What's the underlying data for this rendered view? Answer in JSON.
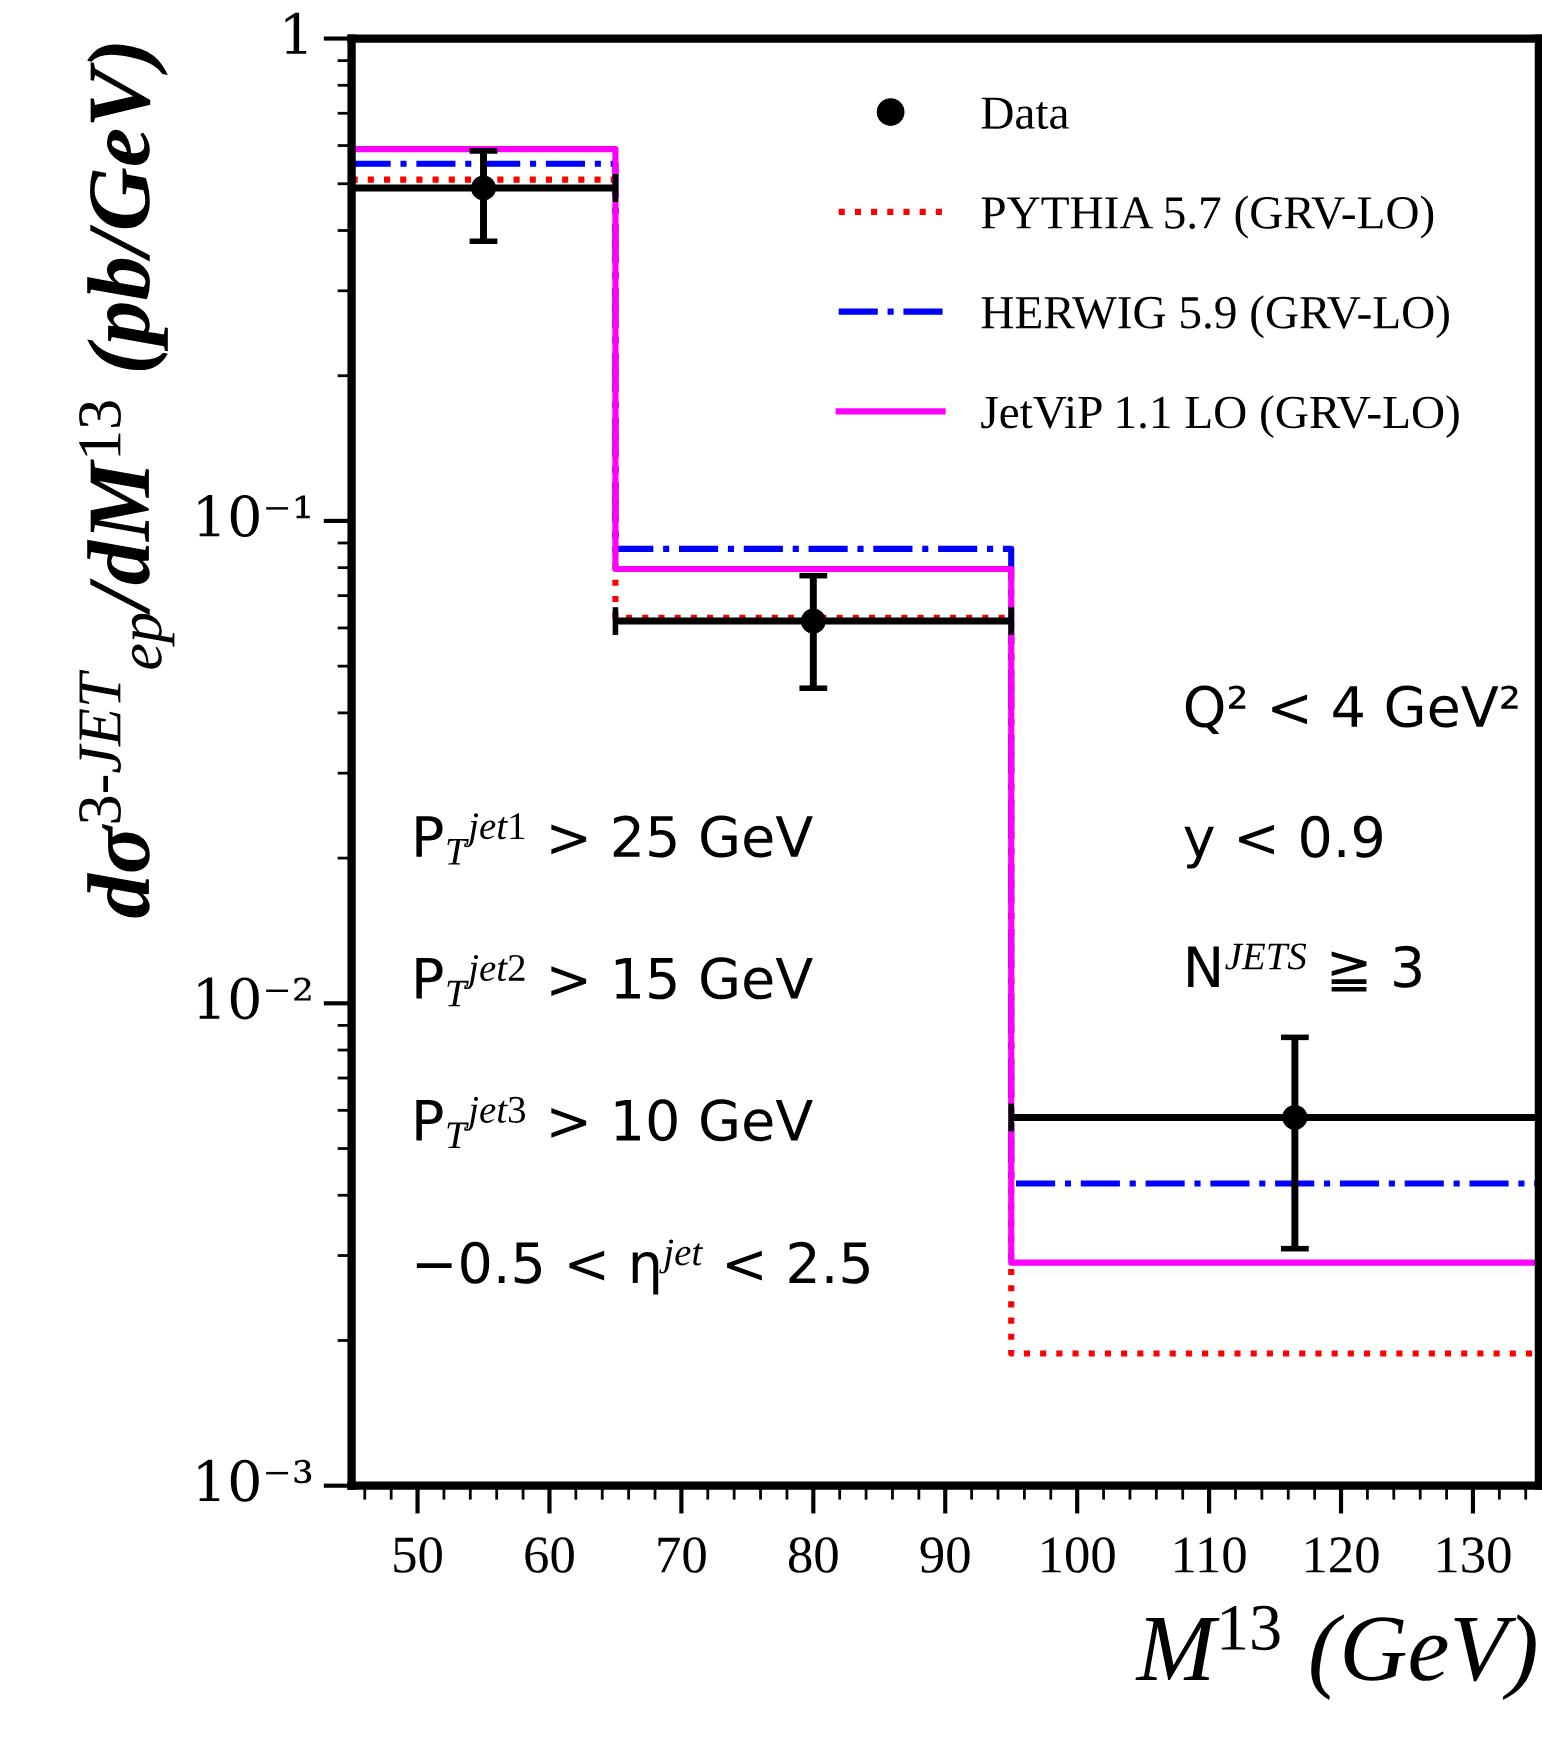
{
  "chart_data": {
    "type": "step",
    "xlabel": "M$^{13}$ (GeV)",
    "ylabel": "dσ$^{3-JET}$$_{ep}$/dM$^{13}$ (pb/GeV)",
    "log": "y",
    "xlim": [
      45,
      135
    ],
    "xticks": [
      50,
      60,
      70,
      80,
      90,
      100,
      110,
      120,
      130
    ],
    "ylim": [
      0.001,
      1
    ],
    "yticks": [
      {
        "value": 0.001,
        "label": "10⁻³"
      },
      {
        "value": 0.01,
        "label": "10⁻²"
      },
      {
        "value": 0.1,
        "label": "10⁻¹"
      },
      {
        "value": 1,
        "label": "1"
      }
    ],
    "grid": false,
    "legend": "top right",
    "series": [
      {
        "name": "Data",
        "type": "scatter",
        "color": "#000000",
        "marker": "circle",
        "x": [
          55,
          80,
          116.5
        ],
        "values": [
          0.49,
          0.062,
          0.0058
        ],
        "errors": [
          [
            0.38,
            0.585
          ],
          [
            0.045,
            0.077
          ],
          [
            0.0031,
            0.0085
          ]
        ],
        "xerrors": [
          [
            45,
            65
          ],
          [
            65,
            95
          ],
          [
            95,
            135
          ]
        ]
      },
      {
        "name": "PYTHIA 5.7 (GRV-LO)",
        "color": "#ff0000",
        "line_style": "dotted",
        "x": [
          45,
          65,
          95,
          135
        ],
        "values": [
          0.51,
          0.063,
          0.00188,
          0.00188
        ]
      },
      {
        "name": "HERWIG 5.9 (GRV-LO)",
        "color": "#0000ff",
        "line_style": "dashdot",
        "x": [
          45,
          65,
          95,
          135
        ],
        "values": [
          0.55,
          0.0875,
          0.00423,
          0.00423
        ]
      },
      {
        "name": "JetViP 1.1 LO (GRV-LO)",
        "color": "#ff00ff",
        "line_style": "solid",
        "x": [
          45,
          65,
          95,
          135
        ],
        "values": [
          0.59,
          0.0795,
          0.0029,
          0.0029
        ]
      }
    ],
    "annotations": [
      "P$_{T}$$^{jet1}$ > 25 GeV",
      "P$_{T}$$^{jet2}$ > 15 GeV",
      "P$_{T}$$^{jet3}$ > 10 GeV",
      "−0.5 < η$^{jet}$ < 2.5",
      "Q² < 4 GeV²",
      "y < 0.9",
      "N$^{JETS}$ ≧ 3"
    ]
  }
}
